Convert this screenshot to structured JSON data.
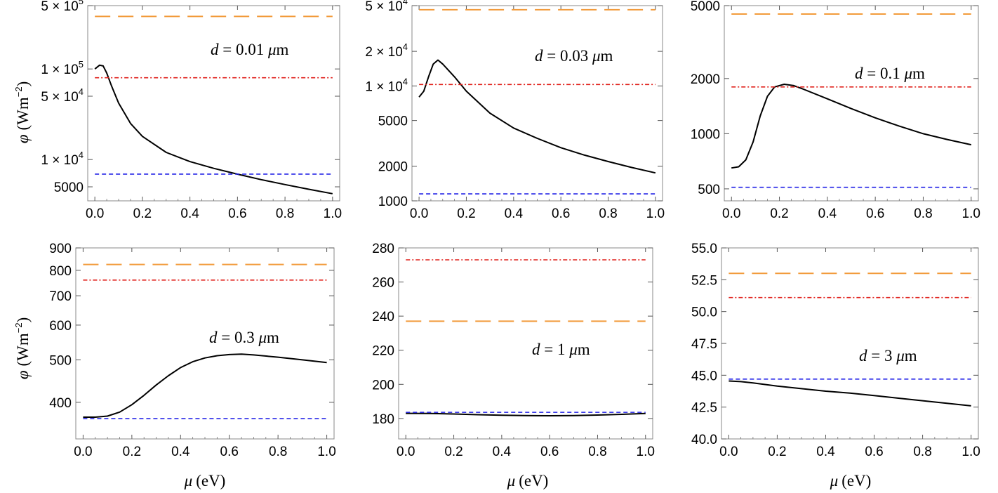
{
  "figure": {
    "xlabel_text": "(eV)",
    "xlabel_symbol": "μ",
    "ylabel_symbol": "φ",
    "ylabel_unit": "(Wm",
    "ylabel_exp": "−2",
    "ylabel_close": ")"
  },
  "colors": {
    "curve": "#000000",
    "orange_dashed": "#f29b3b",
    "red_dashdot": "#e0201b",
    "blue_dashed": "#2121e6",
    "frame": "#888888"
  },
  "chart_data": [
    {
      "type": "line",
      "scale": "log",
      "annotation": "d = 0.01 μm",
      "ylim": [
        3500,
        500000
      ],
      "xlim": [
        -0.03,
        1.03
      ],
      "xticks": [
        "0.0",
        "0.2",
        "0.4",
        "0.6",
        "0.8",
        "1.0"
      ],
      "yticks": [
        {
          "value": 500000,
          "mant": "5",
          "exp": "5"
        },
        {
          "value": 100000,
          "mant": "1",
          "exp": "5"
        },
        {
          "value": 50000,
          "mant": "5",
          "exp": "4"
        },
        {
          "value": 10000,
          "mant": "1",
          "exp": "4"
        },
        {
          "value": 5000,
          "label": "5000"
        }
      ],
      "series": [
        {
          "name": "curve",
          "style": "solid",
          "x": [
            0.0,
            0.02,
            0.035,
            0.05,
            0.07,
            0.1,
            0.15,
            0.2,
            0.3,
            0.4,
            0.5,
            0.6,
            0.7,
            0.8,
            0.9,
            1.0
          ],
          "y": [
            100000,
            110000,
            108000,
            90000,
            65000,
            42000,
            25000,
            18000,
            12000,
            9500,
            8000,
            6900,
            6000,
            5300,
            4700,
            4200
          ]
        },
        {
          "name": "orange-dashed",
          "style": "longdash",
          "value": 380000
        },
        {
          "name": "red-dashdot",
          "style": "dashdot",
          "value": 80000
        },
        {
          "name": "blue-dashed",
          "style": "dash",
          "value": 6900
        }
      ]
    },
    {
      "type": "line",
      "scale": "log",
      "annotation": "d = 0.03 μm",
      "ylim": [
        1000,
        50000
      ],
      "xlim": [
        -0.03,
        1.03
      ],
      "xticks": [
        "0.0",
        "0.2",
        "0.4",
        "0.6",
        "0.8",
        "1.0"
      ],
      "yticks": [
        {
          "value": 50000,
          "mant": "5",
          "exp": "4"
        },
        {
          "value": 20000,
          "mant": "2",
          "exp": "4"
        },
        {
          "value": 10000,
          "mant": "1",
          "exp": "4"
        },
        {
          "value": 5000,
          "label": "5000"
        },
        {
          "value": 2000,
          "label": "2000"
        },
        {
          "value": 1000,
          "label": "1000"
        }
      ],
      "series": [
        {
          "name": "curve",
          "style": "solid",
          "x": [
            0.0,
            0.02,
            0.04,
            0.06,
            0.08,
            0.1,
            0.15,
            0.2,
            0.3,
            0.4,
            0.5,
            0.6,
            0.7,
            0.8,
            0.9,
            1.0
          ],
          "y": [
            8000,
            9000,
            12000,
            15500,
            16800,
            15500,
            12000,
            9000,
            5800,
            4300,
            3500,
            2900,
            2500,
            2200,
            1950,
            1750
          ]
        },
        {
          "name": "orange-dashed",
          "style": "longdash",
          "value": 46000
        },
        {
          "name": "red-dashdot",
          "style": "dashdot",
          "value": 10300
        },
        {
          "name": "blue-dashed",
          "style": "dash",
          "value": 1150
        }
      ]
    },
    {
      "type": "line",
      "scale": "log",
      "annotation": "d = 0.1 μm",
      "ylim": [
        430,
        5000
      ],
      "xlim": [
        -0.03,
        1.03
      ],
      "xticks": [
        "0.0",
        "0.2",
        "0.4",
        "0.6",
        "0.8",
        "1.0"
      ],
      "yticks": [
        {
          "value": 5000,
          "label": "5000"
        },
        {
          "value": 2000,
          "label": "2000"
        },
        {
          "value": 1000,
          "label": "1000"
        },
        {
          "value": 500,
          "label": "500"
        }
      ],
      "series": [
        {
          "name": "curve",
          "style": "solid",
          "x": [
            0.0,
            0.03,
            0.06,
            0.09,
            0.12,
            0.15,
            0.18,
            0.22,
            0.26,
            0.3,
            0.4,
            0.5,
            0.6,
            0.7,
            0.8,
            0.9,
            1.0
          ],
          "y": [
            650,
            660,
            720,
            900,
            1250,
            1600,
            1800,
            1860,
            1830,
            1750,
            1550,
            1370,
            1220,
            1100,
            1000,
            930,
            870
          ]
        },
        {
          "name": "orange-dashed",
          "style": "longdash",
          "value": 4500
        },
        {
          "name": "red-dashdot",
          "style": "dashdot",
          "value": 1800
        },
        {
          "name": "blue-dashed",
          "style": "dash",
          "value": 510
        }
      ]
    },
    {
      "type": "line",
      "scale": "log",
      "annotation": "d = 0.3 μm",
      "ylim": [
        330,
        900
      ],
      "xlim": [
        -0.03,
        1.03
      ],
      "xticks": [
        "0.0",
        "0.2",
        "0.4",
        "0.6",
        "0.8",
        "1.0"
      ],
      "xlabel": "μ (eV)",
      "yticks": [
        {
          "value": 900,
          "label": "900"
        },
        {
          "value": 800,
          "label": "800"
        },
        {
          "value": 700,
          "label": "700"
        },
        {
          "value": 600,
          "label": "600"
        },
        {
          "value": 500,
          "label": "500"
        },
        {
          "value": 400,
          "label": "400"
        }
      ],
      "series": [
        {
          "name": "curve",
          "style": "solid",
          "x": [
            0.0,
            0.05,
            0.1,
            0.15,
            0.2,
            0.25,
            0.3,
            0.35,
            0.4,
            0.45,
            0.5,
            0.55,
            0.6,
            0.65,
            0.7,
            0.8,
            0.9,
            1.0
          ],
          "y": [
            370,
            370,
            372,
            380,
            395,
            415,
            438,
            460,
            480,
            495,
            505,
            511,
            514,
            515,
            513,
            507,
            500,
            493
          ]
        },
        {
          "name": "orange-dashed",
          "style": "longdash",
          "value": 825
        },
        {
          "name": "red-dashdot",
          "style": "dashdot",
          "value": 760
        },
        {
          "name": "blue-dashed",
          "style": "dash",
          "value": 367
        }
      ]
    },
    {
      "type": "line",
      "scale": "linear",
      "annotation": "d = 1 μm",
      "ylim": [
        168,
        280
      ],
      "xlim": [
        -0.03,
        1.03
      ],
      "xticks": [
        "0.0",
        "0.2",
        "0.4",
        "0.6",
        "0.8",
        "1.0"
      ],
      "xlabel": "μ (eV)",
      "yticks": [
        {
          "value": 280,
          "label": "280"
        },
        {
          "value": 260,
          "label": "260"
        },
        {
          "value": 240,
          "label": "240"
        },
        {
          "value": 220,
          "label": "220"
        },
        {
          "value": 200,
          "label": "200"
        },
        {
          "value": 180,
          "label": "180"
        }
      ],
      "series": [
        {
          "name": "curve",
          "style": "solid",
          "x": [
            0.0,
            0.1,
            0.2,
            0.3,
            0.4,
            0.5,
            0.6,
            0.7,
            0.8,
            0.9,
            1.0
          ],
          "y": [
            183,
            182.9,
            182.6,
            182.2,
            181.9,
            181.7,
            181.6,
            181.7,
            182.0,
            182.4,
            182.9
          ]
        },
        {
          "name": "orange-dashed",
          "style": "longdash",
          "value": 237
        },
        {
          "name": "red-dashdot",
          "style": "dashdot",
          "value": 273
        },
        {
          "name": "blue-dashed",
          "style": "dash",
          "value": 183.6
        }
      ]
    },
    {
      "type": "line",
      "scale": "linear",
      "annotation": "d = 3 μm",
      "ylim": [
        40,
        55
      ],
      "xlim": [
        -0.03,
        1.03
      ],
      "xticks": [
        "0.0",
        "0.2",
        "0.4",
        "0.6",
        "0.8",
        "1.0"
      ],
      "xlabel": "μ (eV)",
      "yticks": [
        {
          "value": 55,
          "label": "55.0"
        },
        {
          "value": 52.5,
          "label": "52.5"
        },
        {
          "value": 50,
          "label": "50.0"
        },
        {
          "value": 47.5,
          "label": "47.5"
        },
        {
          "value": 45,
          "label": "45.0"
        },
        {
          "value": 42.5,
          "label": "42.5"
        },
        {
          "value": 40,
          "label": "40.0"
        }
      ],
      "series": [
        {
          "name": "curve",
          "style": "solid",
          "x": [
            0.0,
            0.05,
            0.1,
            0.2,
            0.3,
            0.4,
            0.5,
            0.6,
            0.7,
            0.8,
            0.9,
            1.0
          ],
          "y": [
            44.55,
            44.5,
            44.4,
            44.15,
            43.95,
            43.75,
            43.6,
            43.4,
            43.2,
            43.0,
            42.8,
            42.6
          ]
        },
        {
          "name": "orange-dashed",
          "style": "longdash",
          "value": 53
        },
        {
          "name": "red-dashdot",
          "style": "dashdot",
          "value": 51.1
        },
        {
          "name": "blue-dashed",
          "style": "dash",
          "value": 44.7
        }
      ]
    }
  ]
}
